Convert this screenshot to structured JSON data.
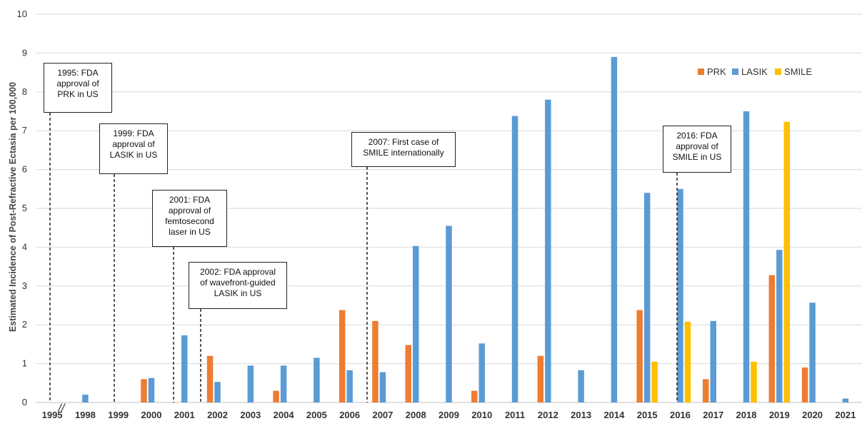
{
  "chart_data": {
    "type": "bar",
    "ylabel": "Estimated Incidence of Post-Refractive Ectasia per 100,000",
    "xlabel": "",
    "ylim": [
      0,
      10
    ],
    "yticks": [
      "0",
      "1",
      "2",
      "3",
      "4",
      "5",
      "6",
      "7",
      "8",
      "9",
      "10"
    ],
    "grid": true,
    "legend_position": "top-right",
    "categories": [
      "1995",
      "1998",
      "1999",
      "2000",
      "2001",
      "2002",
      "2003",
      "2004",
      "2005",
      "2006",
      "2007",
      "2008",
      "2009",
      "2010",
      "2011",
      "2012",
      "2013",
      "2014",
      "2015",
      "2016",
      "2017",
      "2018",
      "2019",
      "2020",
      "2021"
    ],
    "axis_break_label": "//",
    "series": [
      {
        "name": "PRK",
        "color": "#ED7D31",
        "values": [
          null,
          null,
          null,
          0.6,
          null,
          1.2,
          null,
          0.3,
          null,
          2.38,
          2.1,
          1.48,
          null,
          0.3,
          null,
          1.2,
          null,
          null,
          2.38,
          null,
          0.6,
          null,
          3.28,
          0.9,
          null
        ]
      },
      {
        "name": "LASIK",
        "color": "#5B9BD5",
        "values": [
          null,
          0.2,
          null,
          0.63,
          1.73,
          0.53,
          0.95,
          0.95,
          1.15,
          0.83,
          0.78,
          4.03,
          4.55,
          1.52,
          7.38,
          7.8,
          0.83,
          8.9,
          5.4,
          5.5,
          2.1,
          7.5,
          3.93,
          2.57,
          0.1
        ]
      },
      {
        "name": "SMILE",
        "color": "#FFC000",
        "values": [
          null,
          null,
          null,
          null,
          null,
          null,
          null,
          null,
          null,
          null,
          null,
          null,
          null,
          null,
          null,
          null,
          null,
          null,
          1.05,
          2.08,
          null,
          1.05,
          7.23,
          null,
          null
        ]
      }
    ],
    "annotations": [
      {
        "year": "1995",
        "text": "1995: FDA\napproval of\nPRK in US"
      },
      {
        "year": "1999",
        "text": "1999: FDA\napproval of\nLASIK in US"
      },
      {
        "year": "2001",
        "text": "2001: FDA\napproval of\nfemtosecond\nlaser in US"
      },
      {
        "year": "2002",
        "text": "2002: FDA approval\nof wavefront-guided\nLASIK in US"
      },
      {
        "year": "2007",
        "text": "2007: First case of\nSMILE internationally"
      },
      {
        "year": "2016",
        "text": "2016: FDA\napproval of\nSMILE in US"
      }
    ]
  }
}
